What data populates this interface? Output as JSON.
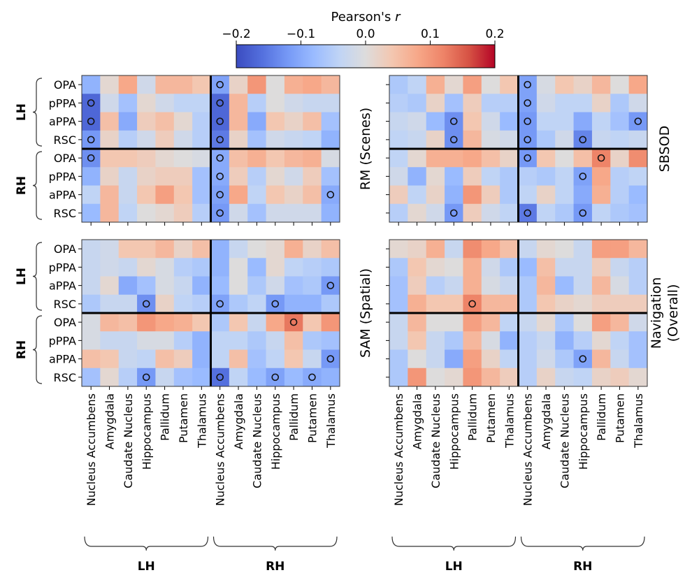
{
  "chart_data": {
    "type": "heatmap",
    "colorbar": {
      "label": "Pearson's r",
      "range": [
        -0.2,
        0.2
      ],
      "ticks": [
        "−0.2",
        "−0.1",
        "0.0",
        "0.1",
        "0.2"
      ],
      "colormap": "coolwarm",
      "low_color": "#3b4cc0",
      "mid_color": "#dddcdc",
      "high_color": "#b40426"
    },
    "row_labels": [
      "OPA",
      "pPPA",
      "aPPA",
      "RSC",
      "OPA",
      "pPPA",
      "aPPA",
      "RSC"
    ],
    "row_groups": [
      "LH",
      "RH"
    ],
    "col_labels": [
      "Nucleus Accumbens",
      "Amygdala",
      "Caudate Nucleus",
      "Hippocampus",
      "Pallidum",
      "Putamen",
      "Thalamus",
      "Nucleus Accumbens",
      "Amygdala",
      "Caudate Nucleus",
      "Hippocampus",
      "Pallidum",
      "Putamen",
      "Thalamus"
    ],
    "col_groups": [
      "LH",
      "RH"
    ],
    "marker_meaning": "circle marks significant cells",
    "panels": [
      {
        "title": "RM (Scenes)",
        "values": [
          [
            -0.09,
            0.01,
            0.08,
            -0.02,
            0.06,
            0.06,
            0.04,
            -0.11,
            0.02,
            0.1,
            0.0,
            0.07,
            0.08,
            0.06
          ],
          [
            -0.17,
            -0.02,
            -0.07,
            0.01,
            -0.02,
            -0.04,
            -0.04,
            -0.17,
            0.06,
            -0.05,
            0.0,
            -0.02,
            -0.03,
            -0.03
          ],
          [
            -0.17,
            0.05,
            -0.1,
            0.03,
            0.05,
            0.01,
            -0.05,
            -0.17,
            0.06,
            -0.1,
            0.04,
            0.02,
            0.05,
            -0.07
          ],
          [
            -0.12,
            0.02,
            -0.05,
            -0.02,
            0.03,
            -0.02,
            -0.05,
            -0.15,
            0.02,
            -0.07,
            -0.02,
            -0.03,
            -0.04,
            -0.09
          ],
          [
            -0.13,
            0.04,
            0.04,
            0.03,
            0.01,
            0.0,
            -0.01,
            -0.1,
            0.05,
            0.07,
            0.04,
            0.06,
            0.07,
            -0.01
          ],
          [
            -0.09,
            0.02,
            -0.03,
            0.02,
            0.03,
            0.03,
            -0.07,
            -0.1,
            0.03,
            -0.05,
            0.01,
            -0.02,
            0.03,
            -0.07
          ],
          [
            -0.04,
            0.06,
            -0.03,
            0.04,
            0.09,
            0.04,
            -0.07,
            -0.11,
            0.08,
            -0.04,
            0.04,
            0.02,
            0.05,
            -0.1
          ],
          [
            -0.08,
            0.06,
            -0.04,
            0.0,
            0.01,
            0.03,
            -0.05,
            -0.12,
            -0.02,
            -0.07,
            -0.02,
            -0.02,
            -0.02,
            -0.09
          ]
        ],
        "significant": [
          [
            1,
            0
          ],
          [
            2,
            0
          ],
          [
            3,
            0
          ],
          [
            4,
            0
          ],
          [
            0,
            7
          ],
          [
            1,
            7
          ],
          [
            2,
            7
          ],
          [
            3,
            7
          ],
          [
            4,
            7
          ],
          [
            5,
            7
          ],
          [
            6,
            7
          ],
          [
            7,
            7
          ],
          [
            6,
            13
          ]
        ]
      },
      {
        "title": "SBSOD",
        "values": [
          [
            -0.06,
            -0.04,
            0.07,
            0.01,
            0.09,
            0.0,
            0.04,
            -0.11,
            -0.01,
            0.04,
            0.02,
            0.06,
            0.0,
            0.08
          ],
          [
            -0.05,
            -0.06,
            0.02,
            -0.07,
            0.03,
            -0.05,
            -0.05,
            -0.11,
            -0.02,
            -0.04,
            -0.04,
            0.02,
            -0.06,
            -0.02
          ],
          [
            -0.03,
            -0.02,
            -0.08,
            -0.13,
            0.04,
            -0.02,
            -0.08,
            -0.12,
            -0.04,
            -0.04,
            -0.1,
            -0.04,
            -0.07,
            -0.12
          ],
          [
            -0.04,
            -0.03,
            0.02,
            -0.13,
            0.06,
            -0.01,
            -0.02,
            -0.12,
            -0.06,
            -0.02,
            -0.14,
            -0.03,
            -0.04,
            -0.03
          ],
          [
            -0.04,
            0.01,
            0.07,
            0.07,
            0.08,
            0.05,
            0.02,
            -0.12,
            0.04,
            0.0,
            0.05,
            0.12,
            0.02,
            0.11
          ],
          [
            -0.02,
            -0.09,
            0.01,
            -0.08,
            0.03,
            -0.04,
            -0.06,
            -0.05,
            -0.06,
            -0.04,
            -0.11,
            0.08,
            -0.05,
            -0.04
          ],
          [
            0.03,
            -0.04,
            0.02,
            -0.09,
            0.1,
            0.03,
            -0.06,
            -0.04,
            0.02,
            -0.04,
            -0.1,
            0.07,
            -0.05,
            -0.08
          ],
          [
            -0.05,
            0.01,
            -0.02,
            -0.12,
            0.03,
            -0.02,
            -0.04,
            -0.15,
            -0.04,
            -0.06,
            -0.12,
            -0.04,
            -0.06,
            -0.07
          ]
        ],
        "significant": [
          [
            2,
            3
          ],
          [
            3,
            3
          ],
          [
            7,
            3
          ],
          [
            0,
            7
          ],
          [
            1,
            7
          ],
          [
            2,
            7
          ],
          [
            3,
            7
          ],
          [
            4,
            7
          ],
          [
            7,
            7
          ],
          [
            2,
            13
          ],
          [
            3,
            10
          ],
          [
            5,
            10
          ],
          [
            7,
            10
          ],
          [
            4,
            11
          ]
        ]
      },
      {
        "title": "SAM (Spatial)",
        "values": [
          [
            -0.03,
            -0.02,
            0.04,
            0.04,
            0.06,
            0.02,
            0.05,
            -0.09,
            -0.03,
            0.0,
            0.01,
            0.07,
            0.02,
            0.05
          ],
          [
            -0.03,
            -0.02,
            -0.03,
            0.01,
            -0.01,
            -0.05,
            -0.06,
            -0.09,
            0.0,
            -0.08,
            0.01,
            -0.04,
            -0.05,
            -0.06
          ],
          [
            -0.03,
            0.01,
            -0.1,
            -0.07,
            -0.01,
            -0.03,
            -0.09,
            -0.08,
            0.0,
            -0.06,
            -0.02,
            -0.07,
            -0.06,
            -0.12
          ],
          [
            -0.06,
            -0.03,
            -0.03,
            -0.13,
            0.02,
            -0.04,
            -0.05,
            -0.11,
            -0.06,
            -0.04,
            -0.12,
            -0.09,
            -0.09,
            -0.06
          ],
          [
            -0.01,
            0.06,
            0.05,
            0.1,
            0.08,
            0.07,
            0.04,
            -0.06,
            0.04,
            -0.03,
            0.08,
            0.13,
            0.04,
            0.1
          ],
          [
            -0.01,
            -0.03,
            -0.03,
            -0.01,
            -0.01,
            -0.05,
            -0.09,
            -0.04,
            -0.04,
            -0.06,
            -0.03,
            0.05,
            -0.06,
            -0.07
          ],
          [
            0.05,
            0.04,
            -0.03,
            -0.04,
            0.05,
            0.03,
            -0.09,
            -0.04,
            0.05,
            -0.07,
            -0.04,
            0.04,
            -0.03,
            -0.12
          ],
          [
            -0.07,
            0.01,
            -0.05,
            -0.12,
            -0.03,
            -0.07,
            -0.08,
            -0.16,
            -0.04,
            -0.08,
            -0.11,
            -0.08,
            -0.1,
            -0.09
          ]
        ],
        "significant": [
          [
            3,
            3
          ],
          [
            7,
            3
          ],
          [
            3,
            7
          ],
          [
            3,
            10
          ],
          [
            2,
            13
          ],
          [
            4,
            11
          ],
          [
            6,
            13
          ],
          [
            7,
            7
          ],
          [
            7,
            10
          ],
          [
            7,
            12
          ]
        ]
      },
      {
        "title": "Navigation\n(Overall)",
        "title_lines": [
          "Navigation",
          "(Overall)"
        ],
        "values": [
          [
            0.01,
            0.02,
            0.07,
            -0.03,
            0.11,
            0.08,
            0.05,
            -0.03,
            0.01,
            0.0,
            -0.03,
            0.09,
            0.09,
            0.06
          ],
          [
            -0.06,
            0.04,
            0.01,
            0.0,
            0.07,
            -0.02,
            -0.06,
            -0.08,
            0.05,
            -0.03,
            -0.03,
            0.03,
            -0.03,
            -0.05
          ],
          [
            -0.07,
            0.03,
            -0.05,
            -0.03,
            0.07,
            -0.01,
            -0.03,
            -0.06,
            0.06,
            -0.08,
            -0.03,
            0.06,
            -0.01,
            -0.05
          ],
          [
            -0.07,
            0.07,
            0.04,
            0.04,
            0.12,
            0.06,
            0.06,
            -0.06,
            0.04,
            0.02,
            0.01,
            0.03,
            0.03,
            0.03
          ],
          [
            -0.03,
            0.06,
            0.0,
            0.0,
            0.09,
            0.06,
            -0.04,
            -0.03,
            0.01,
            -0.06,
            0.0,
            0.09,
            0.06,
            -0.02
          ],
          [
            -0.03,
            0.04,
            -0.03,
            -0.06,
            0.06,
            -0.01,
            -0.09,
            -0.05,
            -0.03,
            -0.09,
            -0.05,
            0.01,
            -0.04,
            -0.07
          ],
          [
            -0.06,
            0.0,
            -0.03,
            -0.1,
            0.09,
            0.02,
            -0.04,
            -0.05,
            -0.02,
            -0.06,
            -0.11,
            0.06,
            -0.03,
            -0.07
          ],
          [
            -0.06,
            0.1,
            0.0,
            0.01,
            0.1,
            0.06,
            0.03,
            -0.05,
            0.02,
            -0.03,
            -0.04,
            0.02,
            0.03,
            0.01
          ]
        ],
        "significant": [
          [
            3,
            4
          ],
          [
            6,
            10
          ]
        ]
      }
    ]
  }
}
